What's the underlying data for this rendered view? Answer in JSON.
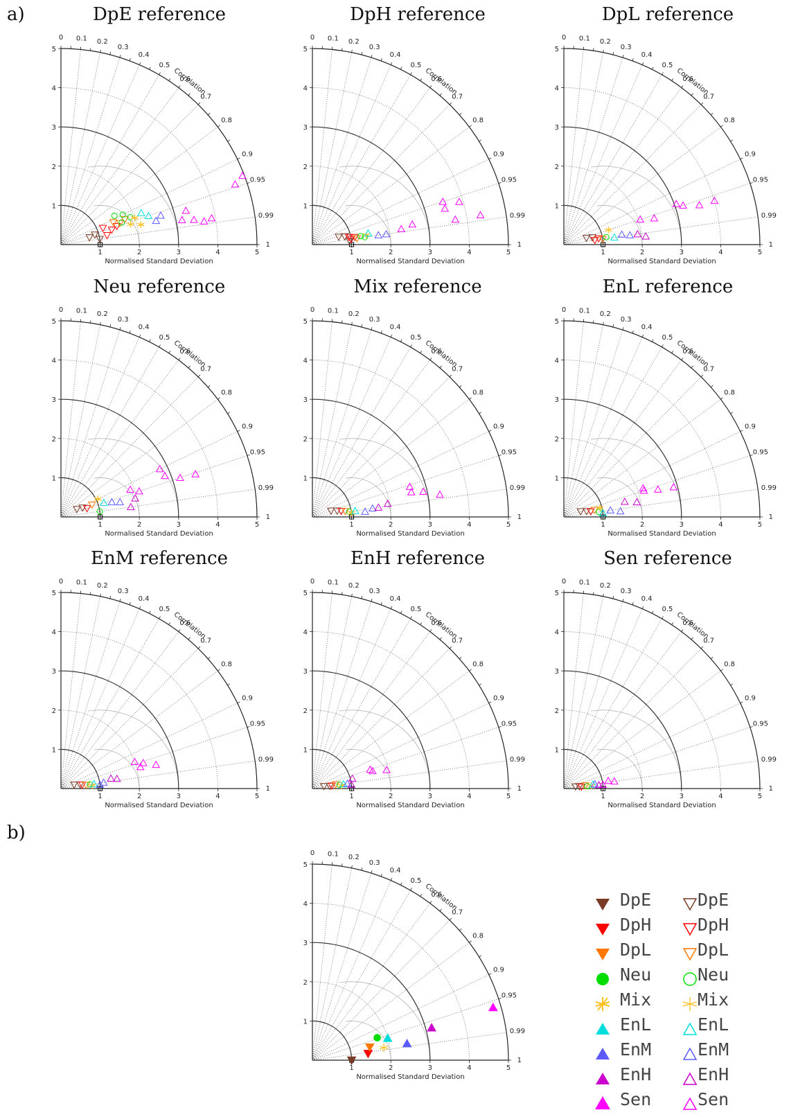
{
  "labels": {
    "a": "a)",
    "b": "b)"
  },
  "axis": {
    "xlabel": "Normalised Standard Deviation",
    "arc_label": "Correlation",
    "sd_ticks": [
      "1",
      "2",
      "3",
      "4",
      "5"
    ],
    "y_ticks": [
      "1",
      "2",
      "3",
      "4",
      "5"
    ],
    "corr_ticks": [
      {
        "v": 0,
        "t": "0"
      },
      {
        "v": 0.1,
        "t": "0.1"
      },
      {
        "v": 0.2,
        "t": "0.2"
      },
      {
        "v": 0.3,
        "t": "0.3"
      },
      {
        "v": 0.4,
        "t": "0.4"
      },
      {
        "v": 0.5,
        "t": "0.5"
      },
      {
        "v": 0.6,
        "t": "0.6"
      },
      {
        "v": 0.7,
        "t": "0.7"
      },
      {
        "v": 0.8,
        "t": "0.8"
      },
      {
        "v": 0.9,
        "t": "0.9"
      },
      {
        "v": 0.95,
        "t": "0.95"
      },
      {
        "v": 0.99,
        "t": "0.99"
      },
      {
        "v": 1,
        "t": "1"
      }
    ]
  },
  "colors": {
    "DpE": "#7a3b26",
    "DpH": "#ff0000",
    "DpL": "#ff7700",
    "Neu": "#00dd00",
    "Mix": "#ffc020",
    "EnL": "#00dddd",
    "EnM": "#5a5aff",
    "EnH": "#cc00cc",
    "Sen": "#ff00ff"
  },
  "legend": [
    {
      "name": "DpE",
      "shape": "tri-down"
    },
    {
      "name": "DpH",
      "shape": "tri-down"
    },
    {
      "name": "DpL",
      "shape": "tri-down"
    },
    {
      "name": "Neu",
      "shape": "circle"
    },
    {
      "name": "Mix",
      "shape": "star"
    },
    {
      "name": "EnL",
      "shape": "tri-up"
    },
    {
      "name": "EnM",
      "shape": "tri-up"
    },
    {
      "name": "EnH",
      "shape": "tri-up"
    },
    {
      "name": "Sen",
      "shape": "tri-up"
    }
  ],
  "chart_data": [
    {
      "type": "scatter",
      "title": "DpE reference",
      "points": [
        {
          "g": "DpE",
          "sd": 0.9,
          "r": 0.96
        },
        {
          "g": "DpE",
          "sd": 1.0,
          "r": 0.99
        },
        {
          "g": "DpE",
          "sd": 0.75,
          "r": 0.97
        },
        {
          "g": "DpH",
          "sd": 1.15,
          "r": 0.93
        },
        {
          "g": "DpH",
          "sd": 1.35,
          "r": 0.96
        },
        {
          "g": "DpH",
          "sd": 1.2,
          "r": 0.98
        },
        {
          "g": "DpH",
          "sd": 1.5,
          "r": 0.95
        },
        {
          "g": "DpL",
          "sd": 1.45,
          "r": 0.92
        },
        {
          "g": "DpL",
          "sd": 1.6,
          "r": 0.94
        },
        {
          "g": "DpL",
          "sd": 1.75,
          "r": 0.93
        },
        {
          "g": "Neu",
          "sd": 1.55,
          "r": 0.88
        },
        {
          "g": "Neu",
          "sd": 1.75,
          "r": 0.9
        },
        {
          "g": "Neu",
          "sd": 1.9,
          "r": 0.93
        },
        {
          "g": "Neu",
          "sd": 1.65,
          "r": 0.94
        },
        {
          "g": "Mix",
          "sd": 2.0,
          "r": 0.94
        },
        {
          "g": "Mix",
          "sd": 2.1,
          "r": 0.97
        },
        {
          "g": "Mix",
          "sd": 1.85,
          "r": 0.96
        },
        {
          "g": "EnL",
          "sd": 2.2,
          "r": 0.93
        },
        {
          "g": "EnL",
          "sd": 2.35,
          "r": 0.95
        },
        {
          "g": "EnM",
          "sd": 2.5,
          "r": 0.97
        },
        {
          "g": "EnM",
          "sd": 2.65,
          "r": 0.96
        },
        {
          "g": "Sen",
          "sd": 3.15,
          "r": 0.98
        },
        {
          "g": "Sen",
          "sd": 3.45,
          "r": 0.983
        },
        {
          "g": "Sen",
          "sd": 3.7,
          "r": 0.987
        },
        {
          "g": "Sen",
          "sd": 3.9,
          "r": 0.985
        },
        {
          "g": "Sen",
          "sd": 3.3,
          "r": 0.965
        },
        {
          "g": "Sen",
          "sd": 4.95,
          "r": 0.935
        },
        {
          "g": "Sen",
          "sd": 4.7,
          "r": 0.945
        }
      ]
    },
    {
      "type": "scatter",
      "title": "DpH reference",
      "points": [
        {
          "g": "DpE",
          "sd": 0.7,
          "r": 0.96
        },
        {
          "g": "DpE",
          "sd": 0.85,
          "r": 0.97
        },
        {
          "g": "DpE",
          "sd": 0.95,
          "r": 0.995
        },
        {
          "g": "DpH",
          "sd": 1.0,
          "r": 0.99
        },
        {
          "g": "DpH",
          "sd": 1.1,
          "r": 0.985
        },
        {
          "g": "DpH",
          "sd": 0.95,
          "r": 0.98
        },
        {
          "g": "DpL",
          "sd": 1.15,
          "r": 0.99
        },
        {
          "g": "Neu",
          "sd": 1.25,
          "r": 0.985
        },
        {
          "g": "Neu",
          "sd": 1.35,
          "r": 0.99
        },
        {
          "g": "Mix",
          "sd": 1.4,
          "r": 0.985
        },
        {
          "g": "EnL",
          "sd": 1.45,
          "r": 0.98
        },
        {
          "g": "EnM",
          "sd": 1.7,
          "r": 0.99
        },
        {
          "g": "EnM",
          "sd": 1.9,
          "r": 0.99
        },
        {
          "g": "Sen",
          "sd": 2.3,
          "r": 0.985
        },
        {
          "g": "Sen",
          "sd": 2.6,
          "r": 0.98
        },
        {
          "g": "Sen",
          "sd": 3.5,
          "r": 0.95
        },
        {
          "g": "Sen",
          "sd": 3.5,
          "r": 0.965
        },
        {
          "g": "Sen",
          "sd": 3.9,
          "r": 0.96
        },
        {
          "g": "Sen",
          "sd": 4.35,
          "r": 0.985
        },
        {
          "g": "Sen",
          "sd": 3.7,
          "r": 0.985
        }
      ]
    },
    {
      "type": "scatter",
      "title": "DpL reference",
      "points": [
        {
          "g": "DpE",
          "sd": 0.6,
          "r": 0.96
        },
        {
          "g": "DpE",
          "sd": 0.75,
          "r": 0.97
        },
        {
          "g": "DpH",
          "sd": 0.8,
          "r": 0.99
        },
        {
          "g": "DpH",
          "sd": 0.9,
          "r": 0.985
        },
        {
          "g": "DpL",
          "sd": 1.0,
          "r": 0.99
        },
        {
          "g": "Neu",
          "sd": 1.1,
          "r": 0.985
        },
        {
          "g": "Mix",
          "sd": 1.2,
          "r": 0.95
        },
        {
          "g": "EnL",
          "sd": 1.3,
          "r": 0.99
        },
        {
          "g": "EnM",
          "sd": 1.5,
          "r": 0.985
        },
        {
          "g": "EnM",
          "sd": 1.7,
          "r": 0.99
        },
        {
          "g": "EnH",
          "sd": 1.9,
          "r": 0.99
        },
        {
          "g": "EnH",
          "sd": 2.1,
          "r": 0.995
        },
        {
          "g": "Sen",
          "sd": 2.05,
          "r": 0.95
        },
        {
          "g": "Sen",
          "sd": 2.4,
          "r": 0.96
        },
        {
          "g": "Sen",
          "sd": 3.05,
          "r": 0.94
        },
        {
          "g": "Sen",
          "sd": 3.2,
          "r": 0.95
        },
        {
          "g": "Sen",
          "sd": 3.6,
          "r": 0.96
        },
        {
          "g": "Sen",
          "sd": 4.0,
          "r": 0.96
        }
      ]
    },
    {
      "type": "scatter",
      "title": "Neu reference",
      "points": [
        {
          "g": "DpE",
          "sd": 0.45,
          "r": 0.9
        },
        {
          "g": "DpE",
          "sd": 0.6,
          "r": 0.92
        },
        {
          "g": "DpH",
          "sd": 0.7,
          "r": 0.95
        },
        {
          "g": "DpL",
          "sd": 0.85,
          "r": 0.93
        },
        {
          "g": "Neu",
          "sd": 1.0,
          "r": 0.99
        },
        {
          "g": "Mix",
          "sd": 1.05,
          "r": 0.9
        },
        {
          "g": "EnL",
          "sd": 1.15,
          "r": 0.95
        },
        {
          "g": "EnM",
          "sd": 1.35,
          "r": 0.96
        },
        {
          "g": "EnM",
          "sd": 1.55,
          "r": 0.97
        },
        {
          "g": "EnH",
          "sd": 1.8,
          "r": 0.99
        },
        {
          "g": "EnH",
          "sd": 1.95,
          "r": 0.97
        },
        {
          "g": "Sen",
          "sd": 1.9,
          "r": 0.93
        },
        {
          "g": "Sen",
          "sd": 2.1,
          "r": 0.95
        },
        {
          "g": "Sen",
          "sd": 2.8,
          "r": 0.9
        },
        {
          "g": "Sen",
          "sd": 2.85,
          "r": 0.93
        },
        {
          "g": "Sen",
          "sd": 3.2,
          "r": 0.95
        },
        {
          "g": "Sen",
          "sd": 3.6,
          "r": 0.953
        }
      ]
    },
    {
      "type": "scatter",
      "title": "Mix reference",
      "points": [
        {
          "g": "DpE",
          "sd": 0.5,
          "r": 0.95
        },
        {
          "g": "DpE",
          "sd": 0.65,
          "r": 0.97
        },
        {
          "g": "DpH",
          "sd": 0.75,
          "r": 0.98
        },
        {
          "g": "DpL",
          "sd": 0.85,
          "r": 0.985
        },
        {
          "g": "Neu",
          "sd": 0.95,
          "r": 0.99
        },
        {
          "g": "Mix",
          "sd": 1.0,
          "r": 0.995
        },
        {
          "g": "EnL",
          "sd": 1.1,
          "r": 0.99
        },
        {
          "g": "EnM",
          "sd": 1.35,
          "r": 0.995
        },
        {
          "g": "EnM",
          "sd": 1.55,
          "r": 0.99
        },
        {
          "g": "EnH",
          "sd": 1.7,
          "r": 0.99
        },
        {
          "g": "EnH",
          "sd": 1.95,
          "r": 0.985
        },
        {
          "g": "Sen",
          "sd": 2.6,
          "r": 0.955
        },
        {
          "g": "Sen",
          "sd": 2.6,
          "r": 0.97
        },
        {
          "g": "Sen",
          "sd": 2.9,
          "r": 0.975
        },
        {
          "g": "Sen",
          "sd": 3.3,
          "r": 0.985
        }
      ]
    },
    {
      "type": "scatter",
      "title": "EnL reference",
      "points": [
        {
          "g": "DpE",
          "sd": 0.45,
          "r": 0.95
        },
        {
          "g": "DpE",
          "sd": 0.6,
          "r": 0.97
        },
        {
          "g": "DpH",
          "sd": 0.7,
          "r": 0.98
        },
        {
          "g": "DpL",
          "sd": 0.8,
          "r": 0.975
        },
        {
          "g": "Neu",
          "sd": 0.9,
          "r": 0.99
        },
        {
          "g": "Mix",
          "sd": 0.95,
          "r": 0.97
        },
        {
          "g": "EnL",
          "sd": 1.0,
          "r": 0.995
        },
        {
          "g": "EnM",
          "sd": 1.2,
          "r": 0.99
        },
        {
          "g": "EnM",
          "sd": 1.45,
          "r": 0.995
        },
        {
          "g": "EnH",
          "sd": 1.6,
          "r": 0.97
        },
        {
          "g": "EnH",
          "sd": 1.9,
          "r": 0.98
        },
        {
          "g": "Sen",
          "sd": 2.15,
          "r": 0.95
        },
        {
          "g": "Sen",
          "sd": 2.15,
          "r": 0.94
        },
        {
          "g": "Sen",
          "sd": 2.5,
          "r": 0.96
        },
        {
          "g": "Sen",
          "sd": 2.9,
          "r": 0.965
        }
      ]
    },
    {
      "type": "scatter",
      "title": "EnM reference",
      "points": [
        {
          "g": "DpE",
          "sd": 0.35,
          "r": 0.96
        },
        {
          "g": "DpE",
          "sd": 0.5,
          "r": 0.98
        },
        {
          "g": "DpH",
          "sd": 0.55,
          "r": 0.985
        },
        {
          "g": "DpL",
          "sd": 0.65,
          "r": 0.99
        },
        {
          "g": "Neu",
          "sd": 0.75,
          "r": 0.99
        },
        {
          "g": "Mix",
          "sd": 0.8,
          "r": 0.995
        },
        {
          "g": "EnL",
          "sd": 0.85,
          "r": 0.99
        },
        {
          "g": "EnM",
          "sd": 1.0,
          "r": 0.995
        },
        {
          "g": "EnM",
          "sd": 1.1,
          "r": 0.99
        },
        {
          "g": "EnH",
          "sd": 1.3,
          "r": 0.98
        },
        {
          "g": "EnH",
          "sd": 1.45,
          "r": 0.985
        },
        {
          "g": "Sen",
          "sd": 2.0,
          "r": 0.94
        },
        {
          "g": "Sen",
          "sd": 2.2,
          "r": 0.955
        },
        {
          "g": "Sen",
          "sd": 2.5,
          "r": 0.97
        },
        {
          "g": "Sen",
          "sd": 2.1,
          "r": 0.965
        }
      ]
    },
    {
      "type": "scatter",
      "title": "EnH reference",
      "points": [
        {
          "g": "DpE",
          "sd": 0.3,
          "r": 0.98
        },
        {
          "g": "DpE",
          "sd": 0.45,
          "r": 0.99
        },
        {
          "g": "DpH",
          "sd": 0.5,
          "r": 0.99
        },
        {
          "g": "DpL",
          "sd": 0.6,
          "r": 0.985
        },
        {
          "g": "Neu",
          "sd": 0.7,
          "r": 0.99
        },
        {
          "g": "Mix",
          "sd": 0.75,
          "r": 0.995
        },
        {
          "g": "EnL",
          "sd": 0.8,
          "r": 0.99
        },
        {
          "g": "EnM",
          "sd": 0.9,
          "r": 0.99
        },
        {
          "g": "EnH",
          "sd": 1.0,
          "r": 0.995
        },
        {
          "g": "EnH",
          "sd": 1.05,
          "r": 0.97
        },
        {
          "g": "Sen",
          "sd": 1.55,
          "r": 0.95
        },
        {
          "g": "Sen",
          "sd": 1.6,
          "r": 0.96
        },
        {
          "g": "Sen",
          "sd": 1.95,
          "r": 0.97
        }
      ]
    },
    {
      "type": "scatter",
      "title": "Sen reference",
      "points": [
        {
          "g": "DpE",
          "sd": 0.3,
          "r": 0.985
        },
        {
          "g": "DpE",
          "sd": 0.4,
          "r": 0.99
        },
        {
          "g": "DpH",
          "sd": 0.45,
          "r": 0.995
        },
        {
          "g": "DpL",
          "sd": 0.55,
          "r": 0.99
        },
        {
          "g": "Neu",
          "sd": 0.6,
          "r": 0.995
        },
        {
          "g": "Mix",
          "sd": 0.7,
          "r": 0.995
        },
        {
          "g": "EnL",
          "sd": 0.75,
          "r": 0.99
        },
        {
          "g": "EnM",
          "sd": 0.8,
          "r": 0.99
        },
        {
          "g": "EnH",
          "sd": 0.9,
          "r": 0.995
        },
        {
          "g": "Sen",
          "sd": 1.0,
          "r": 0.995
        },
        {
          "g": "Sen",
          "sd": 1.15,
          "r": 0.985
        },
        {
          "g": "Sen",
          "sd": 1.3,
          "r": 0.99
        }
      ]
    },
    {
      "type": "scatter",
      "title": "",
      "points": [
        {
          "g": "DpE",
          "sd": 1.0,
          "r": 1.0,
          "filled": true
        },
        {
          "g": "DpH",
          "sd": 1.43,
          "r": 0.993,
          "filled": true
        },
        {
          "g": "DpL",
          "sd": 1.5,
          "r": 0.975,
          "filled": true
        },
        {
          "g": "Neu",
          "sd": 1.75,
          "r": 0.945,
          "filled": true
        },
        {
          "g": "Mix",
          "sd": 1.85,
          "r": 0.985,
          "filled": true
        },
        {
          "g": "EnL",
          "sd": 2.0,
          "r": 0.96,
          "filled": true
        },
        {
          "g": "EnM",
          "sd": 2.45,
          "r": 0.985,
          "filled": true
        },
        {
          "g": "EnH",
          "sd": 3.15,
          "r": 0.965,
          "filled": true
        },
        {
          "g": "Sen",
          "sd": 4.8,
          "r": 0.96,
          "filled": true
        }
      ]
    }
  ]
}
